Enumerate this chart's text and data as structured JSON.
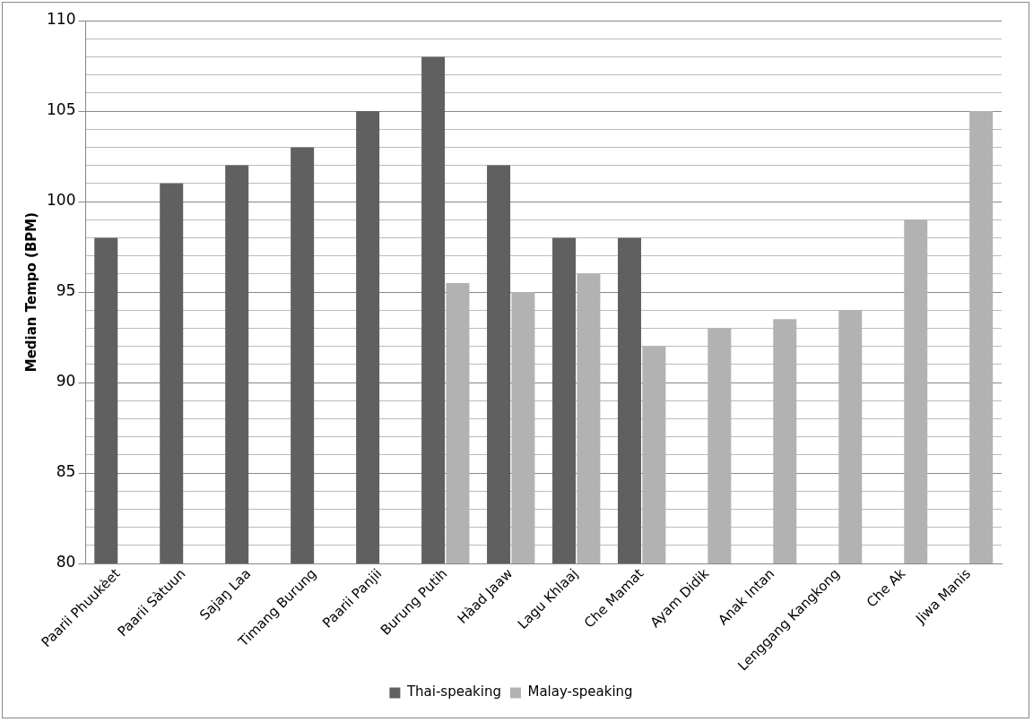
{
  "chart_data": {
    "type": "bar",
    "ylabel": "Median Tempo (BPM)",
    "categories": [
      "Paarii Phuukèet",
      "Paarii Sàtuun",
      "Sajaŋ Laa",
      "Timang Burung",
      "Paarii Panjii",
      "Burung Putih",
      "Hàad Jaaw",
      "Lagu Khlaaj",
      "Che Mamat",
      "Ayam Didik",
      "Anak Intan",
      "Lenggang Kangkong",
      "Che Ak",
      "Jiwa Manis"
    ],
    "series": [
      {
        "name": "Thai-speaking",
        "color": "#606060",
        "values": [
          98,
          101,
          102,
          103,
          105,
          108,
          102,
          98,
          98,
          null,
          null,
          null,
          null,
          null
        ]
      },
      {
        "name": "Malay-speaking",
        "color": "#b2b2b2",
        "values": [
          null,
          null,
          null,
          null,
          null,
          95.5,
          95,
          96,
          92,
          93,
          93.5,
          94,
          99,
          105
        ]
      }
    ],
    "ylim": [
      80,
      110
    ],
    "yticks": [
      80,
      {
        "value": 81,
        "label": null
      },
      {
        "value": 82,
        "label": null
      },
      {
        "value": 83,
        "label": null
      },
      {
        "value": 84,
        "label": null
      },
      85,
      {
        "value": 86,
        "label": null
      },
      {
        "value": 87,
        "label": null
      },
      {
        "value": 88,
        "label": null
      },
      {
        "value": 89,
        "label": null
      },
      90,
      {
        "value": 91,
        "label": null
      },
      {
        "value": 92,
        "label": null
      },
      {
        "value": 93,
        "label": null
      },
      {
        "value": 94,
        "label": null
      },
      95,
      {
        "value": 96,
        "label": null
      },
      {
        "value": 97,
        "label": null
      },
      {
        "value": 98,
        "label": null
      },
      {
        "value": 99,
        "label": null
      },
      100,
      {
        "value": 101,
        "label": null
      },
      {
        "value": 102,
        "label": null
      },
      {
        "value": 103,
        "label": null
      },
      {
        "value": 104,
        "label": null
      },
      105,
      {
        "value": 106,
        "label": null
      },
      {
        "value": 107,
        "label": null
      },
      {
        "value": 108,
        "label": null
      },
      {
        "value": 109,
        "label": null
      },
      110
    ],
    "grid": "y",
    "legend": "bottom"
  }
}
